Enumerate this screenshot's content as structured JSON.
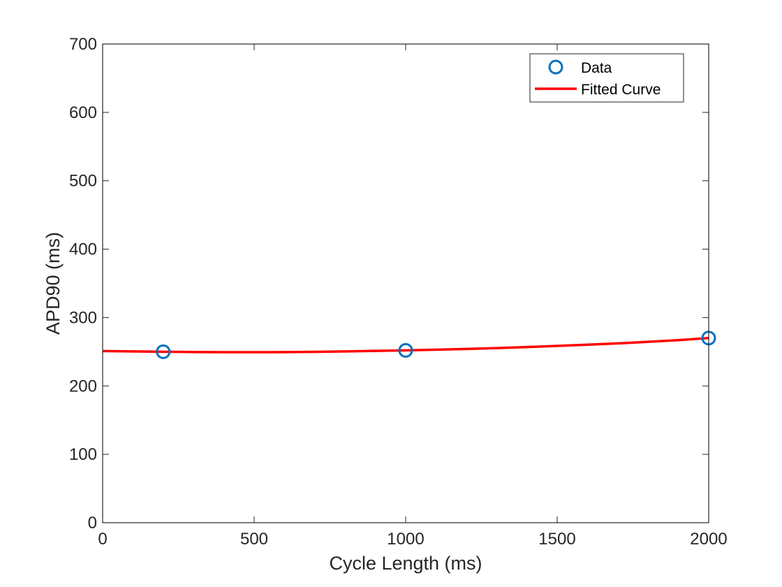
{
  "chart_data": {
    "type": "line",
    "title": "",
    "xlabel": "Cycle Length (ms)",
    "ylabel": "APD90 (ms)",
    "xlim": [
      0,
      2000
    ],
    "ylim": [
      0,
      700
    ],
    "xticks": [
      0,
      500,
      1000,
      1500,
      2000
    ],
    "xtick_labels": [
      "0",
      "500",
      "1000",
      "1500",
      "2000"
    ],
    "yticks": [
      0,
      100,
      200,
      300,
      400,
      500,
      600,
      700
    ],
    "ytick_labels": [
      "0",
      "100",
      "200",
      "300",
      "400",
      "500",
      "600",
      "700"
    ],
    "grid": false,
    "legend_position": "top-right",
    "series": [
      {
        "name": "Data",
        "kind": "scatter",
        "marker": "open-circle",
        "color": "#0072BD",
        "x": [
          200,
          1000,
          2000
        ],
        "y": [
          250,
          252,
          270
        ]
      },
      {
        "name": "Fitted Curve",
        "kind": "line",
        "color": "#FF0000",
        "x": [
          0,
          100,
          200,
          300,
          400,
          500,
          600,
          700,
          800,
          900,
          1000,
          1100,
          1200,
          1300,
          1400,
          1500,
          1600,
          1700,
          1800,
          1900,
          2000
        ],
        "y": [
          251,
          250.5,
          250,
          249.6,
          249.4,
          249.3,
          249.5,
          249.9,
          250.5,
          251.2,
          252,
          253,
          254.1,
          255.4,
          256.9,
          258.5,
          260.3,
          262.2,
          264.5,
          267,
          270
        ]
      }
    ]
  }
}
